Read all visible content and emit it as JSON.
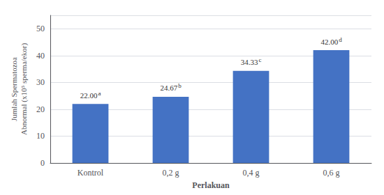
{
  "chart_data": {
    "type": "bar",
    "categories": [
      "Kontrol",
      "0,2 g",
      "0,4 g",
      "0,6 g"
    ],
    "values": [
      22.0,
      24.67,
      34.33,
      42.0
    ],
    "value_labels": [
      "22.00",
      "24.67",
      "34.33",
      "42.00"
    ],
    "annotations": [
      "a",
      "b",
      "c",
      "d"
    ],
    "color": "#4472C4",
    "xlabel": "Perlakuan",
    "ylabel": "Jumlah Spermatozoa\nAbnormal (x10⁵ sperma/ekor)",
    "ylim": [
      0,
      55
    ],
    "yticks": [
      0,
      10,
      20,
      30,
      40,
      50
    ],
    "grid": true,
    "data_labels": true
  }
}
